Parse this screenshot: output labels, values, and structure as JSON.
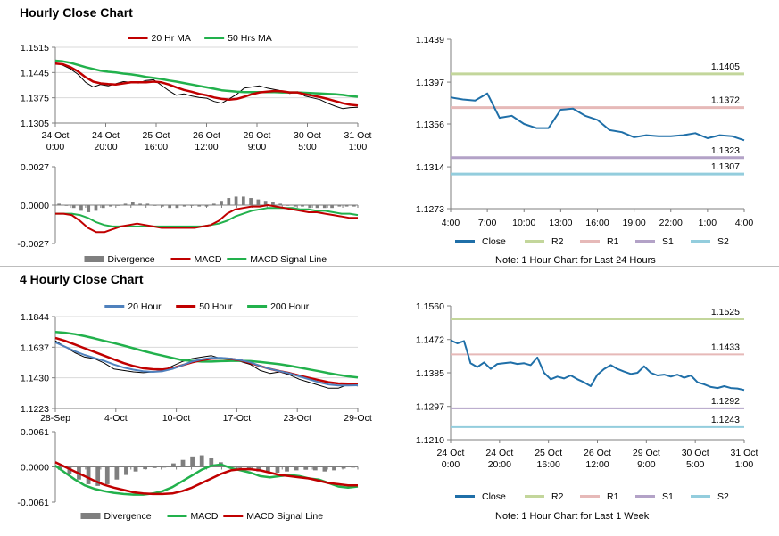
{
  "sections": {
    "hourly_title": "Hourly Close Chart",
    "four_hourly_title": "4 Hourly Close Chart"
  },
  "notes": {
    "hourly": "Note: 1 Hour Chart for Last 24 Hours",
    "weekly": "Note: 1 Hour Chart for Last 1 Week"
  },
  "chart_data": [
    {
      "id": "hourly-price",
      "type": "line",
      "title": "",
      "ylim": [
        1.1305,
        1.1515
      ],
      "yticks": [
        "1.1515",
        "1.1445",
        "1.1375",
        "1.1305"
      ],
      "xticks": [
        "24 Oct\n0:00",
        "24 Oct\n20:00",
        "25 Oct\n16:00",
        "26 Oct\n12:00",
        "29 Oct\n9:00",
        "30 Oct\n5:00",
        "31 Oct\n1:00"
      ],
      "legend": [
        "20 Hr MA",
        "50 Hrs MA"
      ],
      "colors": {
        "price": "#000000",
        "ma20": "#c00000",
        "ma50": "#22b14c"
      },
      "series": [
        {
          "name": "",
          "values": [
            1.1472,
            1.1465,
            1.1455,
            1.144,
            1.1418,
            1.1405,
            1.1412,
            1.1408,
            1.1414,
            1.142,
            1.1418,
            1.1416,
            1.1423,
            1.1425,
            1.141,
            1.1395,
            1.1382,
            1.1386,
            1.138,
            1.1376,
            1.1374,
            1.1365,
            1.136,
            1.1372,
            1.1385,
            1.1402,
            1.1405,
            1.1408,
            1.1402,
            1.1398,
            1.1394,
            1.1387,
            1.1392,
            1.138,
            1.1375,
            1.137,
            1.136,
            1.1352,
            1.1345,
            1.1348,
            1.1349
          ]
        },
        {
          "name": "20 Hr MA",
          "values": [
            1.147,
            1.1468,
            1.146,
            1.1448,
            1.1432,
            1.142,
            1.1415,
            1.1413,
            1.1412,
            1.1415,
            1.1418,
            1.1418,
            1.1418,
            1.142,
            1.1418,
            1.1412,
            1.1404,
            1.1397,
            1.1392,
            1.1386,
            1.1382,
            1.1376,
            1.1372,
            1.137,
            1.1372,
            1.1378,
            1.1385,
            1.139,
            1.1392,
            1.1394,
            1.1393,
            1.139,
            1.139,
            1.1385,
            1.1381,
            1.1377,
            1.1372,
            1.1366,
            1.136,
            1.1356,
            1.1354
          ]
        },
        {
          "name": "50 Hrs MA",
          "values": [
            1.1478,
            1.1476,
            1.1472,
            1.1466,
            1.146,
            1.1455,
            1.145,
            1.1447,
            1.1445,
            1.1442,
            1.144,
            1.1437,
            1.1433,
            1.143,
            1.1427,
            1.1423,
            1.142,
            1.1416,
            1.1412,
            1.1408,
            1.1404,
            1.14,
            1.1396,
            1.1394,
            1.1392,
            1.1391,
            1.1391,
            1.1391,
            1.1391,
            1.1391,
            1.139,
            1.139,
            1.139,
            1.1389,
            1.1388,
            1.1387,
            1.1386,
            1.1385,
            1.1383,
            1.138,
            1.1378
          ]
        }
      ]
    },
    {
      "id": "hourly-macd",
      "type": "line",
      "ylim": [
        -0.0027,
        0.0027
      ],
      "yticks": [
        "0.0027",
        "0.0000",
        "-0.0027"
      ],
      "legend": [
        "Divergence",
        "MACD",
        "MACD Signal Line"
      ],
      "colors": {
        "divergence": "#7f7f7f",
        "macd": "#c00000",
        "signal": "#22b14c"
      },
      "series": [
        {
          "name": "Divergence",
          "values": [
            0.0001,
            0.0,
            -0.0002,
            -0.0004,
            -0.0005,
            -0.0004,
            -0.0002,
            -0.0001,
            0.0,
            0.0001,
            0.0002,
            0.0001,
            0.0001,
            0.0,
            -0.0001,
            -0.0002,
            -0.0002,
            -0.0001,
            0.0,
            -0.0001,
            -0.0001,
            0.0001,
            0.0003,
            0.0005,
            0.0006,
            0.0006,
            0.0005,
            0.0004,
            0.0003,
            0.0002,
            0.0001,
            0.0,
            -0.0001,
            -0.0001,
            -0.0002,
            -0.0002,
            -0.0002,
            -0.0002,
            -0.0001,
            -0.0001,
            -0.0001
          ]
        },
        {
          "name": "MACD",
          "values": [
            -0.0006,
            -0.0006,
            -0.0007,
            -0.0011,
            -0.0016,
            -0.0019,
            -0.0019,
            -0.0017,
            -0.0015,
            -0.0014,
            -0.0013,
            -0.0014,
            -0.0015,
            -0.0016,
            -0.0016,
            -0.0016,
            -0.0016,
            -0.0016,
            -0.0015,
            -0.0014,
            -0.0011,
            -0.0006,
            -0.0003,
            -0.0002,
            -0.0001,
            -0.0001,
            0.0,
            -0.0001,
            -0.0002,
            -0.0003,
            -0.0004,
            -0.0005,
            -0.0005,
            -0.0006,
            -0.0007,
            -0.0008,
            -0.0009,
            -0.0009
          ]
        },
        {
          "name": "MACD Signal Line",
          "values": [
            -0.0006,
            -0.0006,
            -0.0006,
            -0.0007,
            -0.0009,
            -0.0012,
            -0.0014,
            -0.0015,
            -0.0015,
            -0.0015,
            -0.0015,
            -0.0015,
            -0.0015,
            -0.0015,
            -0.0015,
            -0.0015,
            -0.0015,
            -0.0015,
            -0.0015,
            -0.0014,
            -0.0013,
            -0.0011,
            -0.0008,
            -0.0006,
            -0.0004,
            -0.0003,
            -0.0002,
            -0.0002,
            -0.0002,
            -0.0002,
            -0.0003,
            -0.0003,
            -0.0004,
            -0.0004,
            -0.0005,
            -0.0006,
            -0.0006,
            -0.0007
          ]
        }
      ]
    },
    {
      "id": "hourly-levels",
      "type": "line",
      "ylim": [
        1.1273,
        1.1439
      ],
      "yticks": [
        "1.1439",
        "1.1397",
        "1.1356",
        "1.1314",
        "1.1273"
      ],
      "xticks": [
        "4:00",
        "7:00",
        "10:00",
        "13:00",
        "16:00",
        "19:00",
        "22:00",
        "1:00",
        "4:00"
      ],
      "levels": [
        {
          "name": "R2",
          "value": 1.1405,
          "label": "1.1405",
          "color": "#c3d69b"
        },
        {
          "name": "R1",
          "value": 1.1372,
          "label": "1.1372",
          "color": "#e6b9b8"
        },
        {
          "name": "S1",
          "value": 1.1323,
          "label": "1.1323",
          "color": "#b3a2c7"
        },
        {
          "name": "S2",
          "value": 1.1307,
          "label": "1.1307",
          "color": "#93cddd"
        }
      ],
      "legend": [
        "Close",
        "R2",
        "R1",
        "S1",
        "S2"
      ],
      "colors": {
        "close": "#1f6fa8"
      },
      "series": [
        {
          "name": "Close",
          "values": [
            1.1382,
            1.138,
            1.1379,
            1.1386,
            1.1362,
            1.1364,
            1.1356,
            1.1352,
            1.1352,
            1.137,
            1.1371,
            1.1364,
            1.136,
            1.135,
            1.1348,
            1.1343,
            1.1345,
            1.1344,
            1.1344,
            1.1345,
            1.1347,
            1.1342,
            1.1345,
            1.1344,
            1.134
          ]
        }
      ]
    },
    {
      "id": "four-hourly-price",
      "type": "line",
      "ylim": [
        1.1223,
        1.1844
      ],
      "yticks": [
        "1.1844",
        "1.1637",
        "1.1430",
        "1.1223"
      ],
      "xticks": [
        "28-Sep",
        "4-Oct",
        "10-Oct",
        "17-Oct",
        "23-Oct",
        "29-Oct"
      ],
      "legend": [
        "20 Hour",
        "50 Hour",
        "200 Hour"
      ],
      "colors": {
        "price": "#000000",
        "ma20": "#4f81bd",
        "ma50": "#c00000",
        "ma200": "#22b14c"
      },
      "series": [
        {
          "name": "",
          "values": [
            1.168,
            1.164,
            1.16,
            1.157,
            1.156,
            1.153,
            1.149,
            1.148,
            1.147,
            1.1465,
            1.147,
            1.148,
            1.151,
            1.154,
            1.156,
            1.157,
            1.158,
            1.156,
            1.1555,
            1.154,
            1.152,
            1.148,
            1.146,
            1.147,
            1.145,
            1.142,
            1.14,
            1.138,
            1.136,
            1.136,
            1.1385,
            1.1375
          ]
        },
        {
          "name": "20 Hour",
          "values": [
            1.167,
            1.164,
            1.161,
            1.1585,
            1.1565,
            1.1545,
            1.152,
            1.15,
            1.1485,
            1.1475,
            1.147,
            1.1475,
            1.149,
            1.1515,
            1.154,
            1.1555,
            1.1565,
            1.1565,
            1.156,
            1.155,
            1.1535,
            1.151,
            1.149,
            1.1475,
            1.146,
            1.144,
            1.142,
            1.14,
            1.1385,
            1.1378,
            1.1378,
            1.138
          ]
        },
        {
          "name": "50 Hour",
          "values": [
            1.17,
            1.168,
            1.1655,
            1.163,
            1.1605,
            1.158,
            1.1555,
            1.153,
            1.151,
            1.1495,
            1.1488,
            1.1487,
            1.1495,
            1.1515,
            1.1535,
            1.155,
            1.156,
            1.1562,
            1.1558,
            1.1548,
            1.153,
            1.151,
            1.149,
            1.1475,
            1.1462,
            1.1445,
            1.143,
            1.1415,
            1.14,
            1.1392,
            1.139,
            1.1388
          ]
        },
        {
          "name": "200 Hour",
          "values": [
            1.174,
            1.1735,
            1.1725,
            1.1712,
            1.1697,
            1.168,
            1.1665,
            1.1648,
            1.163,
            1.1612,
            1.1595,
            1.158,
            1.1565,
            1.155,
            1.1545,
            1.154,
            1.154,
            1.1543,
            1.1545,
            1.1545,
            1.1543,
            1.1537,
            1.153,
            1.1522,
            1.1512,
            1.15,
            1.1487,
            1.1475,
            1.1462,
            1.145,
            1.144,
            1.1432
          ]
        }
      ]
    },
    {
      "id": "four-hourly-macd",
      "type": "line",
      "ylim": [
        -0.0061,
        0.0061
      ],
      "yticks": [
        "0.0061",
        "0.0000",
        "-0.0061"
      ],
      "legend": [
        "Divergence",
        "MACD",
        "MACD Signal Line"
      ],
      "colors": {
        "divergence": "#7f7f7f",
        "macd": "#22b14c",
        "signal": "#c00000"
      },
      "series": [
        {
          "name": "Divergence",
          "values": [
            -0.0005,
            -0.0012,
            -0.0022,
            -0.003,
            -0.0033,
            -0.003,
            -0.0022,
            -0.0014,
            -0.0008,
            -0.0004,
            -0.0002,
            0.0,
            0.0006,
            0.0012,
            0.0018,
            0.002,
            0.0015,
            0.0008,
            0.0002,
            -0.0002,
            -0.0006,
            -0.0008,
            -0.001,
            -0.001,
            -0.0008,
            -0.0006,
            -0.0005,
            -0.0006,
            -0.0008,
            -0.0006,
            -0.0003,
            -0.0001
          ]
        },
        {
          "name": "MACD",
          "values": [
            0.0002,
            -0.001,
            -0.0022,
            -0.0032,
            -0.0038,
            -0.0042,
            -0.0045,
            -0.0047,
            -0.0048,
            -0.0048,
            -0.0046,
            -0.0042,
            -0.0035,
            -0.0025,
            -0.0015,
            -0.0005,
            0.0002,
            0.0004,
            -0.0002,
            -0.0006,
            -0.001,
            -0.0016,
            -0.0018,
            -0.0016,
            -0.0014,
            -0.0016,
            -0.002,
            -0.0022,
            -0.0028,
            -0.0034,
            -0.0036,
            -0.0034
          ]
        },
        {
          "name": "MACD Signal Line",
          "values": [
            0.0008,
            0.0,
            -0.0008,
            -0.0016,
            -0.0024,
            -0.0031,
            -0.0036,
            -0.004,
            -0.0044,
            -0.0046,
            -0.0047,
            -0.0047,
            -0.0046,
            -0.0042,
            -0.0036,
            -0.0028,
            -0.002,
            -0.0012,
            -0.0006,
            -0.0004,
            -0.0004,
            -0.0006,
            -0.001,
            -0.0014,
            -0.0016,
            -0.0018,
            -0.002,
            -0.0024,
            -0.0028,
            -0.003,
            -0.0032,
            -0.0032
          ]
        }
      ]
    },
    {
      "id": "weekly-levels",
      "type": "line",
      "ylim": [
        1.121,
        1.156
      ],
      "yticks": [
        "1.1560",
        "1.1472",
        "1.1385",
        "1.1297",
        "1.1210"
      ],
      "xticks": [
        "24 Oct\n0:00",
        "24 Oct\n20:00",
        "25 Oct\n16:00",
        "26 Oct\n12:00",
        "29 Oct\n9:00",
        "30 Oct\n5:00",
        "31 Oct\n1:00"
      ],
      "levels": [
        {
          "name": "R2",
          "value": 1.1525,
          "label": "1.1525",
          "color": "#c3d69b"
        },
        {
          "name": "R1",
          "value": 1.1433,
          "label": "1.1433",
          "color": "#e6b9b8"
        },
        {
          "name": "S1",
          "value": 1.1292,
          "label": "1.1292",
          "color": "#b3a2c7"
        },
        {
          "name": "S2",
          "value": 1.1243,
          "label": "1.1243",
          "color": "#93cddd"
        }
      ],
      "legend": [
        "Close",
        "R2",
        "R1",
        "S1",
        "S2"
      ],
      "colors": {
        "close": "#1f6fa8"
      },
      "series": [
        {
          "name": "Close",
          "values": [
            1.147,
            1.1462,
            1.1468,
            1.141,
            1.14,
            1.1412,
            1.1395,
            1.1408,
            1.141,
            1.1412,
            1.1408,
            1.141,
            1.1405,
            1.1425,
            1.1385,
            1.1368,
            1.1375,
            1.137,
            1.1378,
            1.1368,
            1.136,
            1.135,
            1.138,
            1.1395,
            1.1405,
            1.1395,
            1.1388,
            1.1382,
            1.1385,
            1.1402,
            1.1385,
            1.1378,
            1.138,
            1.1375,
            1.138,
            1.1372,
            1.1378,
            1.136,
            1.1355,
            1.1348,
            1.1345,
            1.135,
            1.1345,
            1.1344,
            1.134
          ]
        }
      ]
    }
  ]
}
